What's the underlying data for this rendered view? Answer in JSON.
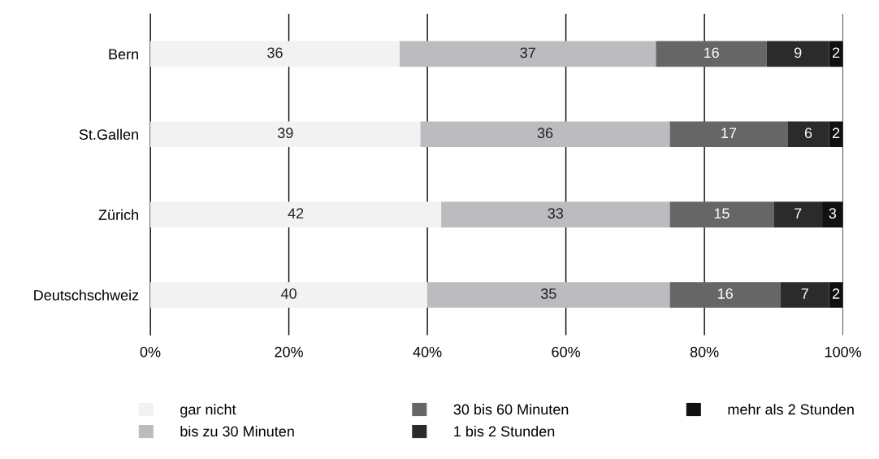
{
  "chart_data": {
    "type": "bar",
    "orientation": "horizontal",
    "stacked": true,
    "data_labels": true,
    "grid": "x",
    "legend": "bottom",
    "categories": [
      "Bern",
      "St.Gallen",
      "Zürich",
      "Deutschschweiz"
    ],
    "series": [
      {
        "name": "gar nicht",
        "color": "#f2f2f2",
        "values": [
          36,
          39,
          42,
          40
        ]
      },
      {
        "name": "bis zu 30 Minuten",
        "color": "#bcbbbf",
        "values": [
          37,
          36,
          33,
          35
        ]
      },
      {
        "name": "30 bis 60 Minuten",
        "color": "#666666",
        "values": [
          16,
          17,
          15,
          16
        ]
      },
      {
        "name": "1 bis 2 Stunden",
        "color": "#2b2b2b",
        "values": [
          9,
          6,
          7,
          7
        ]
      },
      {
        "name": "mehr als 2 Stunden",
        "color": "#111111",
        "values": [
          2,
          2,
          3,
          2
        ]
      }
    ],
    "xlim": [
      0,
      100
    ],
    "xticks": [
      {
        "value": 0,
        "label": "0%"
      },
      {
        "value": 20,
        "label": "20%"
      },
      {
        "value": 40,
        "label": "40%"
      },
      {
        "value": 60,
        "label": "60%"
      },
      {
        "value": 80,
        "label": "80%"
      },
      {
        "value": 100,
        "label": "100%"
      }
    ]
  }
}
